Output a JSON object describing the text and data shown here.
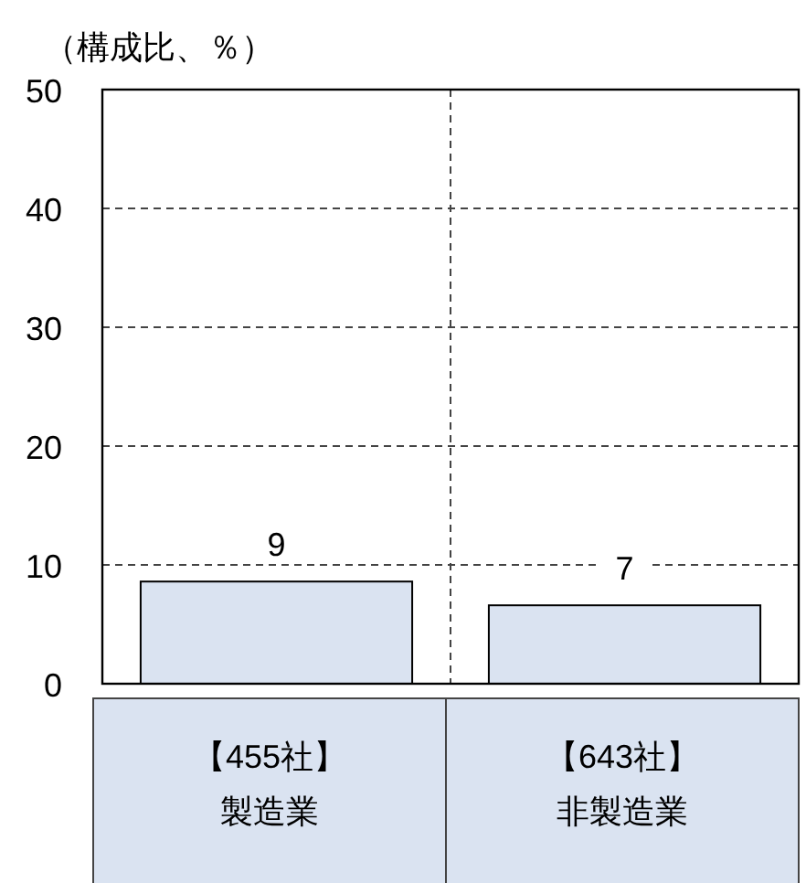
{
  "chart_data": {
    "type": "bar",
    "ylabel": "（構成比、％）",
    "categories": [
      "【455社】製造業",
      "【643社】非製造業"
    ],
    "values": [
      8.6,
      6.6
    ],
    "value_labels": [
      "9",
      "7"
    ],
    "color": "#dae3f1",
    "ylim": [
      0,
      50
    ],
    "yticks": [
      0,
      10,
      20,
      30,
      40,
      50
    ],
    "grid": true
  }
}
